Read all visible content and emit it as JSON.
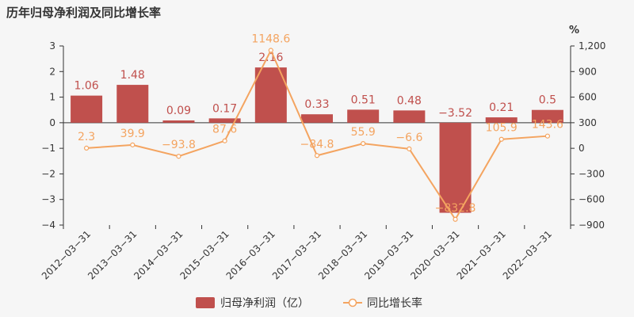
{
  "title": "历年归母净利润及同比增长率",
  "chart_data": {
    "type": "bar",
    "categories": [
      "2012−03−31",
      "2013−03−31",
      "2014−03−31",
      "2015−03−31",
      "2016−03−31",
      "2017−03−31",
      "2018−03−31",
      "2019−03−31",
      "2020−03−31",
      "2021−03−31",
      "2022−03−31"
    ],
    "series": [
      {
        "name": "归母净利润（亿）",
        "type": "bar",
        "color": "#c0504d",
        "axis": "left",
        "values": [
          1.06,
          1.48,
          0.09,
          0.17,
          2.16,
          0.33,
          0.51,
          0.48,
          -3.52,
          0.21,
          0.5
        ],
        "labels": [
          "1.06",
          "1.48",
          "0.09",
          "0.17",
          "2.16",
          "0.33",
          "0.51",
          "0.48",
          "−3.52",
          "0.21",
          "0.5"
        ]
      },
      {
        "name": "同比增长率",
        "type": "line",
        "color": "#f4a460",
        "axis": "right",
        "values": [
          2.3,
          39.9,
          -93.8,
          87.6,
          1148.6,
          -84.8,
          55.9,
          -6.6,
          -832.8,
          105.9,
          143.6
        ],
        "labels": [
          "2.3",
          "39.9",
          "−93.8",
          "87.6",
          "1148.6",
          "−84.8",
          "55.9",
          "−6.6",
          "−832.8",
          "105.9",
          "143.6"
        ]
      }
    ],
    "y_left": {
      "lim": [
        -4,
        3
      ],
      "ticks": [
        3,
        2,
        1,
        0,
        -1,
        -2,
        -3,
        -4
      ],
      "tick_labels": [
        "3",
        "2",
        "1",
        "0",
        "−1",
        "−2",
        "−3",
        "−4"
      ]
    },
    "y_right": {
      "unit": "%",
      "lim": [
        -900,
        1200
      ],
      "ticks": [
        1200,
        900,
        600,
        300,
        0,
        -300,
        -600,
        -900
      ],
      "tick_labels": [
        "1,200",
        "900",
        "600",
        "300",
        "0",
        "−300",
        "−600",
        "−900"
      ]
    },
    "grid": false,
    "legend_position": "bottom-center"
  }
}
